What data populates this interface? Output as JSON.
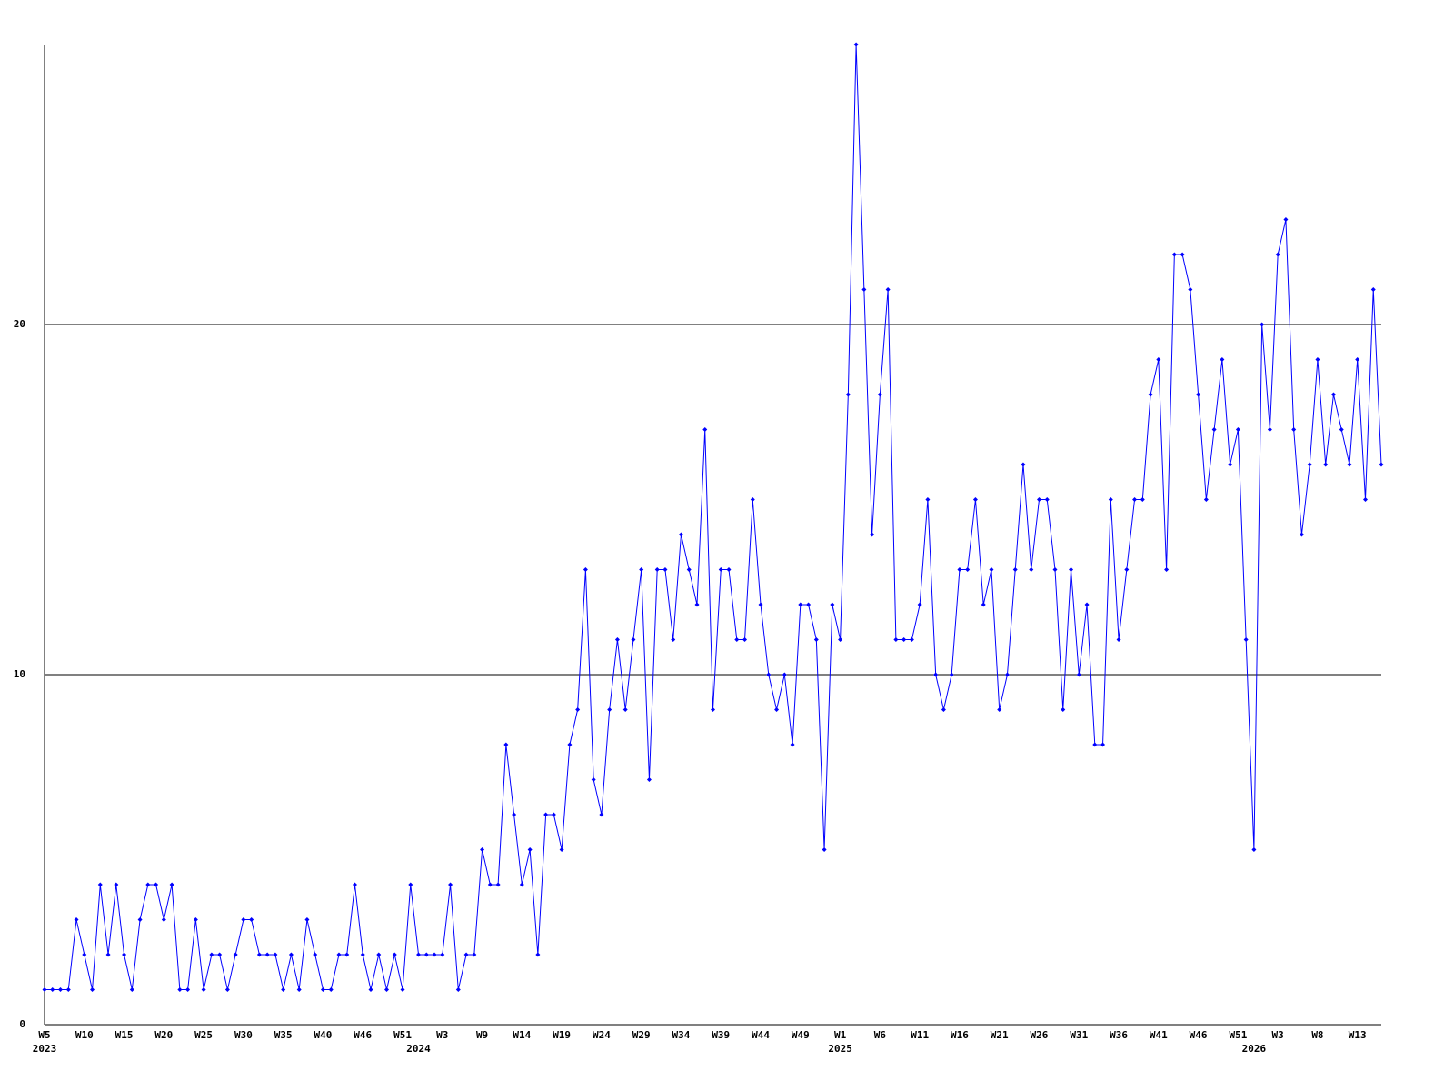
{
  "chart_data": {
    "type": "line",
    "categories": [
      "W5",
      null,
      null,
      null,
      null,
      "W10",
      null,
      null,
      null,
      null,
      "W15",
      null,
      null,
      null,
      null,
      "W20",
      null,
      null,
      null,
      null,
      "W25",
      null,
      null,
      null,
      null,
      "W30",
      null,
      null,
      null,
      null,
      "W35",
      null,
      null,
      null,
      null,
      "W40",
      null,
      null,
      null,
      null,
      "W46",
      null,
      null,
      null,
      null,
      "W51",
      null,
      null,
      null,
      null,
      "W3",
      null,
      null,
      null,
      null,
      "W9",
      null,
      null,
      null,
      null,
      "W14",
      null,
      null,
      null,
      null,
      "W19",
      null,
      null,
      null,
      null,
      "W24",
      null,
      null,
      null,
      null,
      "W29",
      null,
      null,
      null,
      null,
      "W34",
      null,
      null,
      null,
      null,
      "W39",
      null,
      null,
      null,
      null,
      "W44",
      null,
      null,
      null,
      null,
      "W49",
      null,
      null,
      null,
      null,
      "W1",
      null,
      null,
      null,
      null,
      "W6",
      null,
      null,
      null,
      null,
      "W11",
      null,
      null,
      null,
      null,
      "W16",
      null,
      null,
      null,
      null,
      "W21",
      null,
      null,
      null,
      null,
      "W26",
      null,
      null,
      null,
      null,
      "W31",
      null,
      null,
      null,
      null,
      "W36",
      null,
      null,
      null,
      null,
      "W41",
      null,
      null,
      null,
      null,
      "W46",
      null,
      null,
      null,
      null,
      "W51",
      null,
      null,
      null,
      null,
      "W3",
      null,
      null,
      null,
      null,
      "W8",
      null,
      null,
      null,
      null,
      "W13",
      null,
      null,
      null
    ],
    "category_years": [
      "2023",
      null,
      null,
      null,
      null,
      null,
      null,
      null,
      null,
      null,
      null,
      null,
      null,
      null,
      null,
      null,
      null,
      null,
      null,
      null,
      null,
      null,
      null,
      null,
      null,
      null,
      null,
      null,
      null,
      null,
      null,
      null,
      null,
      null,
      null,
      null,
      null,
      null,
      null,
      null,
      null,
      null,
      null,
      null,
      null,
      null,
      null,
      "2024",
      null,
      null,
      null,
      null,
      null,
      null,
      null,
      null,
      null,
      null,
      null,
      null,
      null,
      null,
      null,
      null,
      null,
      null,
      null,
      null,
      null,
      null,
      null,
      null,
      null,
      null,
      null,
      null,
      null,
      null,
      null,
      null,
      null,
      null,
      null,
      null,
      null,
      null,
      null,
      null,
      null,
      null,
      null,
      null,
      null,
      null,
      null,
      null,
      null,
      null,
      null,
      null,
      "2025",
      null,
      null,
      null,
      null,
      null,
      null,
      null,
      null,
      null,
      null,
      null,
      null,
      null,
      null,
      null,
      null,
      null,
      null,
      null,
      null,
      null,
      null,
      null,
      null,
      null,
      null,
      null,
      null,
      null,
      null,
      null,
      null,
      null,
      null,
      null,
      null,
      null,
      null,
      null,
      null,
      null,
      null,
      null,
      null,
      null,
      null,
      null,
      null,
      null,
      null,
      null,
      "2026",
      null,
      null,
      null,
      null,
      null,
      null,
      null,
      null,
      null,
      null,
      null,
      null,
      null,
      null,
      null,
      null
    ],
    "series": [
      {
        "color": "#0000ff",
        "values": [
          1,
          1,
          1,
          1,
          3,
          2,
          1,
          4,
          2,
          4,
          2,
          1,
          3,
          4,
          4,
          3,
          4,
          1,
          1,
          3,
          1,
          2,
          2,
          1,
          2,
          3,
          3,
          2,
          2,
          2,
          1,
          2,
          1,
          3,
          2,
          1,
          1,
          2,
          2,
          4,
          2,
          1,
          2,
          1,
          2,
          1,
          4,
          2,
          2,
          2,
          2,
          4,
          1,
          2,
          2,
          5,
          4,
          4,
          8,
          6,
          4,
          5,
          2,
          6,
          6,
          5,
          8,
          9,
          13,
          7,
          6,
          9,
          11,
          9,
          11,
          13,
          7,
          13,
          13,
          11,
          14,
          13,
          12,
          17,
          9,
          13,
          13,
          11,
          11,
          15,
          12,
          10,
          9,
          10,
          8,
          12,
          12,
          11,
          5,
          12,
          11,
          18,
          28,
          21,
          14,
          18,
          21,
          11,
          11,
          11,
          12,
          15,
          10,
          9,
          10,
          13,
          13,
          15,
          12,
          13,
          9,
          10,
          13,
          16,
          13,
          15,
          15,
          13,
          9,
          13,
          10,
          12,
          8,
          8,
          15,
          11,
          13,
          15,
          15,
          18,
          19,
          13,
          22,
          22,
          21,
          18,
          15,
          17,
          19,
          16,
          17,
          11,
          5,
          20,
          17,
          22,
          23,
          17,
          14,
          16,
          19,
          16,
          18,
          17,
          16,
          19,
          15,
          21,
          16
        ]
      }
    ],
    "ylim": [
      0,
      28
    ],
    "yticks": [
      0,
      10,
      20
    ],
    "grid": true
  }
}
